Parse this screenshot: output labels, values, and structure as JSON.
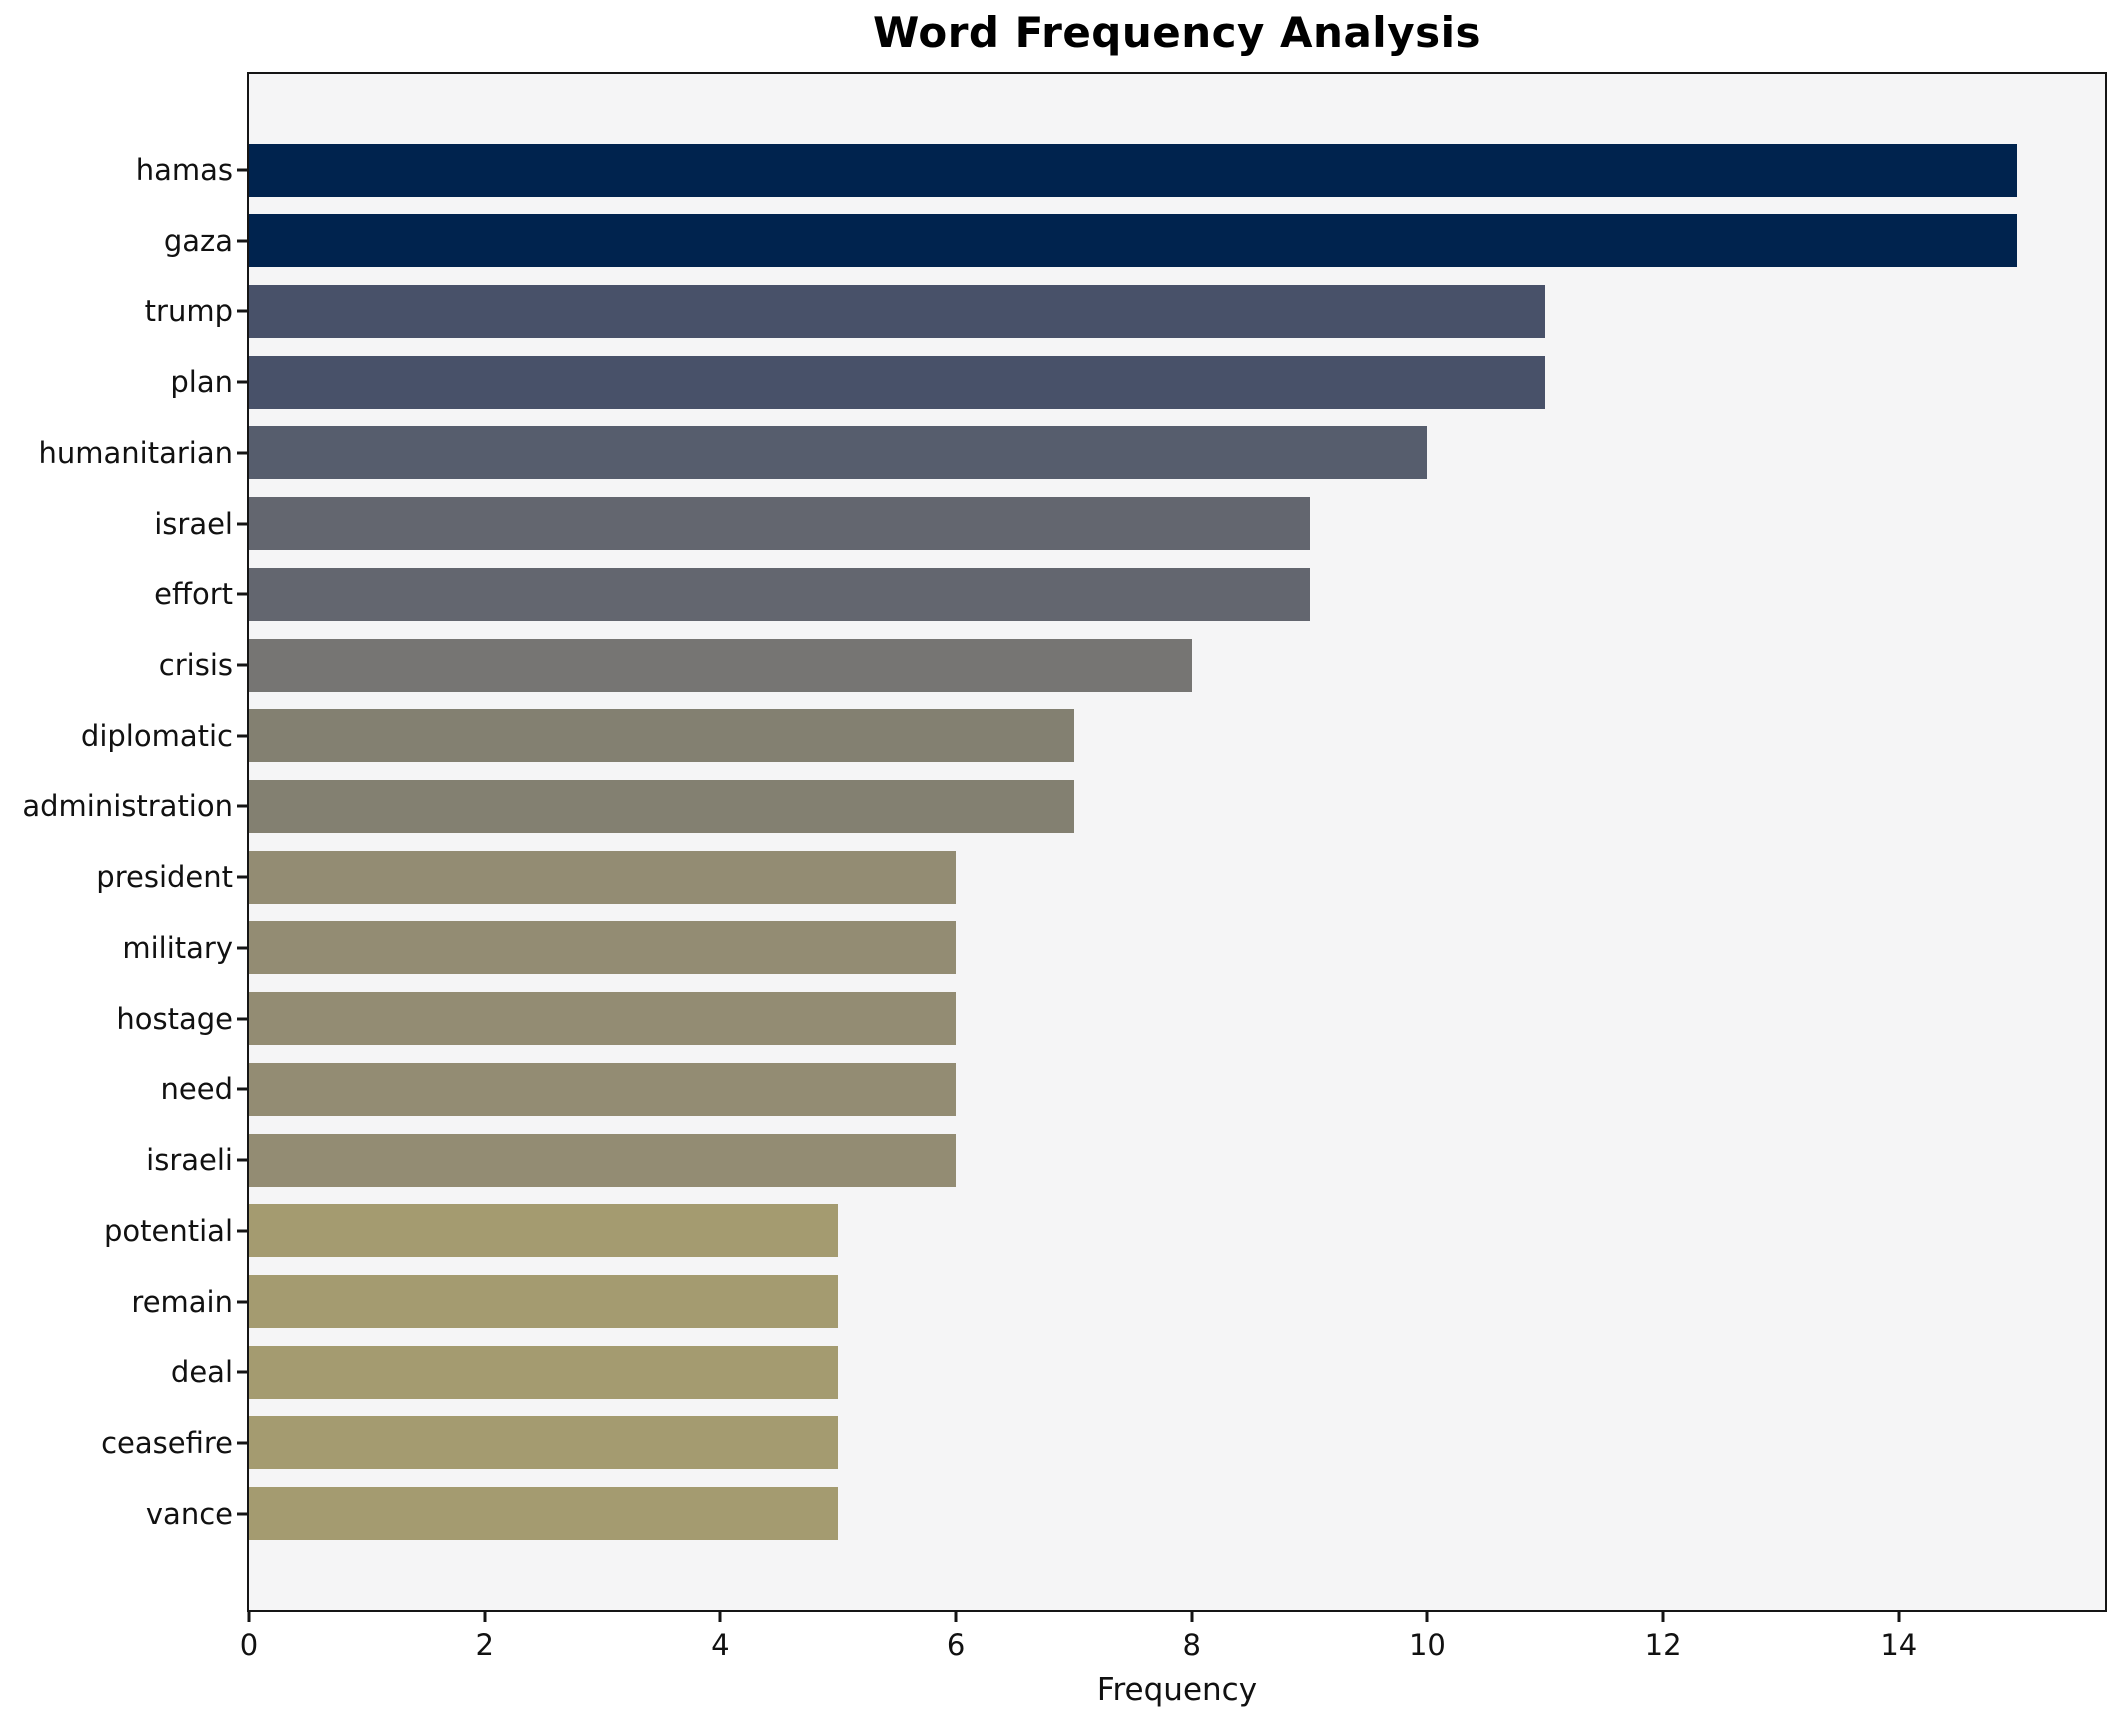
{
  "chart": {
    "title": "Word Frequency Analysis",
    "xlabel": "Frequency"
  },
  "chart_data": {
    "type": "bar",
    "orientation": "horizontal",
    "title": "Word Frequency Analysis",
    "xlabel": "Frequency",
    "ylabel": "",
    "categories": [
      "hamas",
      "gaza",
      "trump",
      "plan",
      "humanitarian",
      "israel",
      "effort",
      "crisis",
      "diplomatic",
      "administration",
      "president",
      "military",
      "hostage",
      "need",
      "israeli",
      "potential",
      "remain",
      "deal",
      "ceasefire",
      "vance"
    ],
    "values": [
      15,
      15,
      11,
      11,
      10,
      9,
      9,
      8,
      7,
      7,
      6,
      6,
      6,
      6,
      6,
      5,
      5,
      5,
      5,
      5
    ],
    "bar_colors": [
      "#00234e",
      "#00234e",
      "#485169",
      "#485169",
      "#565d6d",
      "#63666f",
      "#63666f",
      "#767573",
      "#838071",
      "#838071",
      "#938c73",
      "#938c73",
      "#938c73",
      "#938c73",
      "#938c73",
      "#a49b70",
      "#a49b70",
      "#a49b70",
      "#a49b70",
      "#a49b70"
    ],
    "xlim": [
      0,
      15.75
    ],
    "xticks": [
      0,
      2,
      4,
      6,
      8,
      10,
      12,
      14
    ],
    "grid": false,
    "legend_position": "none",
    "plot_background": "#f5f5f6",
    "figure_background": "#ffffff",
    "spine_color": "#151515"
  }
}
